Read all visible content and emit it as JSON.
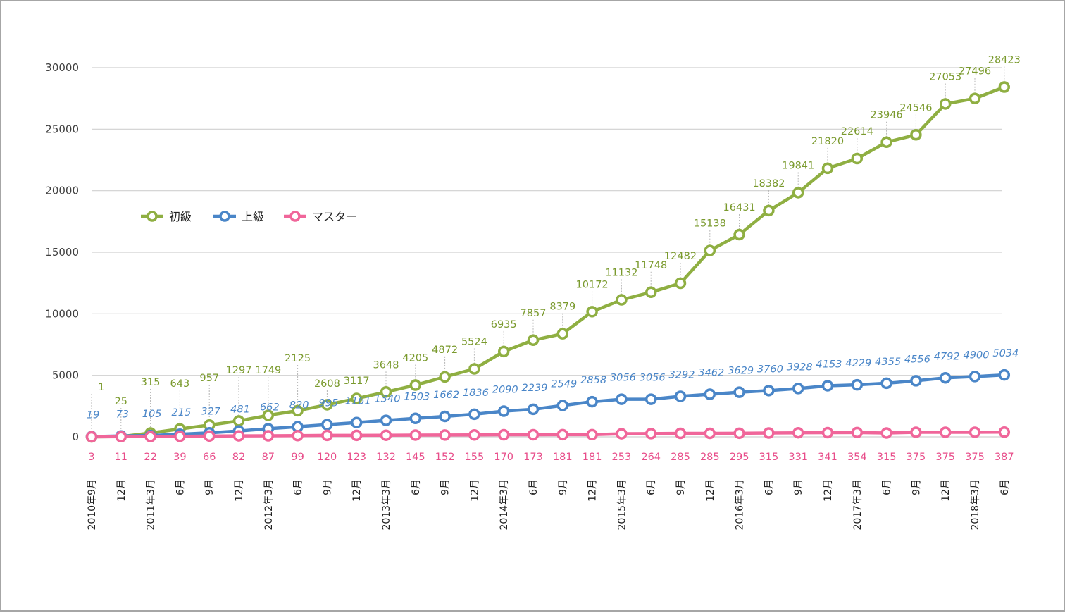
{
  "chart_data": {
    "type": "line",
    "title": "",
    "xlabel": "",
    "ylabel": "",
    "ylim": [
      0,
      30000
    ],
    "yticks": [
      0,
      5000,
      10000,
      15000,
      20000,
      25000,
      30000
    ],
    "grid": true,
    "legend_position": "left",
    "categories": [
      "2010年9月",
      "12月",
      "2011年3月",
      "6月",
      "9月",
      "12月",
      "2012年3月",
      "6月",
      "9月",
      "12月",
      "2013年3月",
      "6月",
      "9月",
      "12月",
      "2014年3月",
      "6月",
      "9月",
      "12月",
      "2015年3月",
      "6月",
      "9月",
      "12月",
      "2016年3月",
      "6月",
      "9月",
      "12月",
      "2017年3月",
      "6月",
      "9月",
      "12月",
      "2018年3月",
      "6月"
    ],
    "series": [
      {
        "name": "初級",
        "color": "#8faf42",
        "label_color": "#7a9a2d",
        "values": [
          1,
          25,
          315,
          643,
          957,
          1297,
          1749,
          2125,
          2608,
          3117,
          3648,
          4205,
          4872,
          5524,
          6935,
          7857,
          8379,
          10172,
          11132,
          11748,
          12482,
          15138,
          16431,
          18382,
          19841,
          21820,
          22614,
          23946,
          24546,
          27053,
          27496,
          28423
        ]
      },
      {
        "name": "上級",
        "color": "#4a86c8",
        "label_color": "#4a86c8",
        "values": [
          19,
          73,
          105,
          215,
          327,
          481,
          662,
          820,
          995,
          1161,
          1340,
          1503,
          1662,
          1836,
          2090,
          2239,
          2549,
          2858,
          3056,
          3056,
          3292,
          3462,
          3629,
          3760,
          3928,
          4153,
          4229,
          4355,
          4556,
          4792,
          4900,
          5034
        ]
      },
      {
        "name": "マスター",
        "color": "#f0669a",
        "label_color": "#e84d8a",
        "values": [
          3,
          11,
          22,
          39,
          66,
          82,
          87,
          99,
          120,
          123,
          132,
          145,
          152,
          155,
          170,
          173,
          181,
          181,
          253,
          264,
          285,
          285,
          295,
          315,
          331,
          341,
          354,
          315,
          375,
          375,
          375,
          387
        ]
      }
    ]
  }
}
